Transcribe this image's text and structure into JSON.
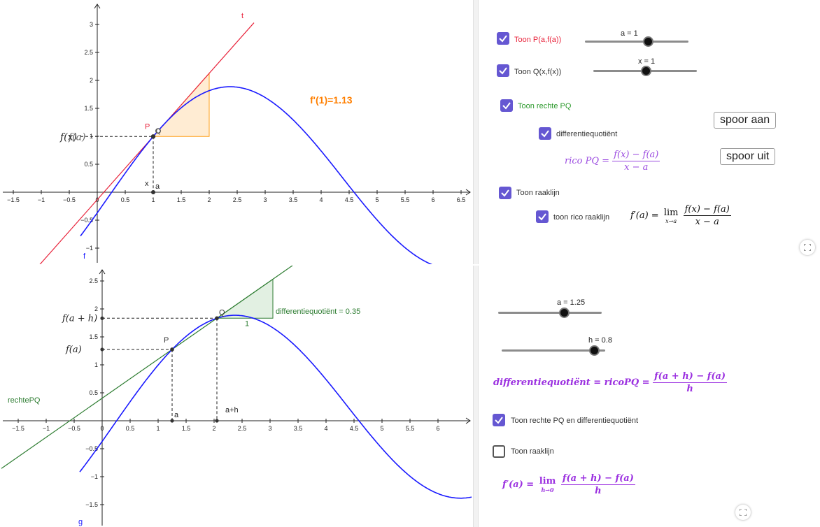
{
  "applet1": {
    "graph": {
      "x_ticks": [
        "−1.5",
        "−1",
        "−0.5",
        "0",
        "0.5",
        "1",
        "1.5",
        "2",
        "2.5",
        "3",
        "3.5",
        "4",
        "4.5",
        "5",
        "5.5",
        "6",
        "6.5"
      ],
      "y_ticks": [
        "3",
        "2.5",
        "2",
        "1.5",
        "1",
        "0.5",
        "−0.5",
        "−1"
      ],
      "y_axis_label": "f(x)",
      "y_axis_label_overlap": "f(a)",
      "point_p": "P",
      "point_q": "Q",
      "label_x": "x",
      "label_a": "a",
      "line_t": "t",
      "curve_f": "f",
      "derivative_text": "f'(1)=1.13",
      "colors": {
        "curve": "#1a1aff",
        "tangent": "#e8233b",
        "triangle": "#ff9f1a",
        "derivative": "#ff7f00",
        "point": "#333333"
      }
    },
    "controls": {
      "cb_p": {
        "label": "Toon P(a,f(a))",
        "checked": true,
        "color": "#e8233b"
      },
      "cb_q": {
        "label": "Toon Q(x,f(x))",
        "checked": true
      },
      "cb_pq": {
        "label": "Toon rechte PQ",
        "checked": true,
        "color": "#2e9a2e"
      },
      "cb_dq": {
        "label": "differentiequotiënt",
        "checked": true
      },
      "cb_raak": {
        "label": "Toon raaklijn",
        "checked": true
      },
      "cb_rico": {
        "label": "toon rico raaklijn",
        "checked": true
      },
      "slider_a": {
        "label": "a = 1",
        "value": 1
      },
      "slider_x": {
        "label": "x = 1",
        "value": 1
      },
      "btn_on": "spoor aan",
      "btn_off": "spoor uit",
      "formula_rico": {
        "lhs": "rico PQ =",
        "num": "f(x) − f(a)",
        "den": "x − a",
        "color": "#9b4be0"
      },
      "formula_lim": {
        "lhs": "f′(a) =",
        "lim": "lim",
        "sub": "x→a",
        "num": "f(x) − f(a)",
        "den": "x − a"
      }
    }
  },
  "applet2": {
    "graph": {
      "x_ticks": [
        "−1.5",
        "−1",
        "−0.5",
        "0",
        "0.5",
        "1",
        "1.5",
        "2",
        "2.5",
        "3",
        "3.5",
        "4",
        "4.5",
        "5",
        "5.5",
        "6"
      ],
      "y_ticks": [
        "2.5",
        "2",
        "1.5",
        "1",
        "0.5",
        "−0.5",
        "−1",
        "−1.5"
      ],
      "label_fah": "f(a + h)",
      "label_fa": "f(a)",
      "point_p": "P",
      "point_q": "Q",
      "label_a": "a",
      "label_ah": "a+h",
      "line_label": "rechtePQ",
      "curve_g": "g",
      "slope_text": "differentiequotiënt = 0.35",
      "slope_one": "1",
      "colors": {
        "curve": "#1a1aff",
        "line": "#2e7d32",
        "triangle": "#2e7d32"
      }
    },
    "controls": {
      "slider_a": {
        "label": "a  = 1.25",
        "value": 1.25
      },
      "slider_h": {
        "label": "h = 0.8",
        "value": 0.8
      },
      "formula_dq": {
        "lhs": "differentiequotiënt = ricoPQ =",
        "num": "f(a + h) − f(a)",
        "den": "h",
        "color": "#9b30e0"
      },
      "cb_pq": {
        "label": "Toon rechte PQ en differentiequotiënt",
        "checked": true
      },
      "cb_raak": {
        "label": "Toon raaklijn",
        "checked": false
      },
      "formula_lim": {
        "lhs": "f′(a) =",
        "lim": "lim",
        "sub": "h→0",
        "num": "f(a + h) − f(a)",
        "den": "h",
        "color": "#9b30e0"
      }
    }
  }
}
